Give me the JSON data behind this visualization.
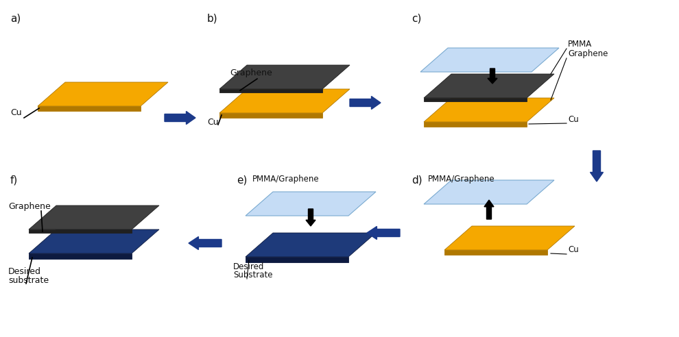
{
  "bg_color": "#ffffff",
  "cu_color": "#F5A800",
  "cu_edge": "#B07800",
  "graphene_color": "#404040",
  "graphene_edge": "#202020",
  "pmma_color": "#C5DCF5",
  "pmma_edge": "#7AAAD0",
  "substrate_color": "#1E3A7A",
  "substrate_edge": "#0D1A40",
  "arrow_color": "#1C3A8A",
  "text_color": "#111111",
  "panel_labels": [
    "a)",
    "b)",
    "c)",
    "d)",
    "e)",
    "f)"
  ],
  "panel_label_fontsize": 11,
  "text_fontsize": 9,
  "small_text_fontsize": 8.5
}
